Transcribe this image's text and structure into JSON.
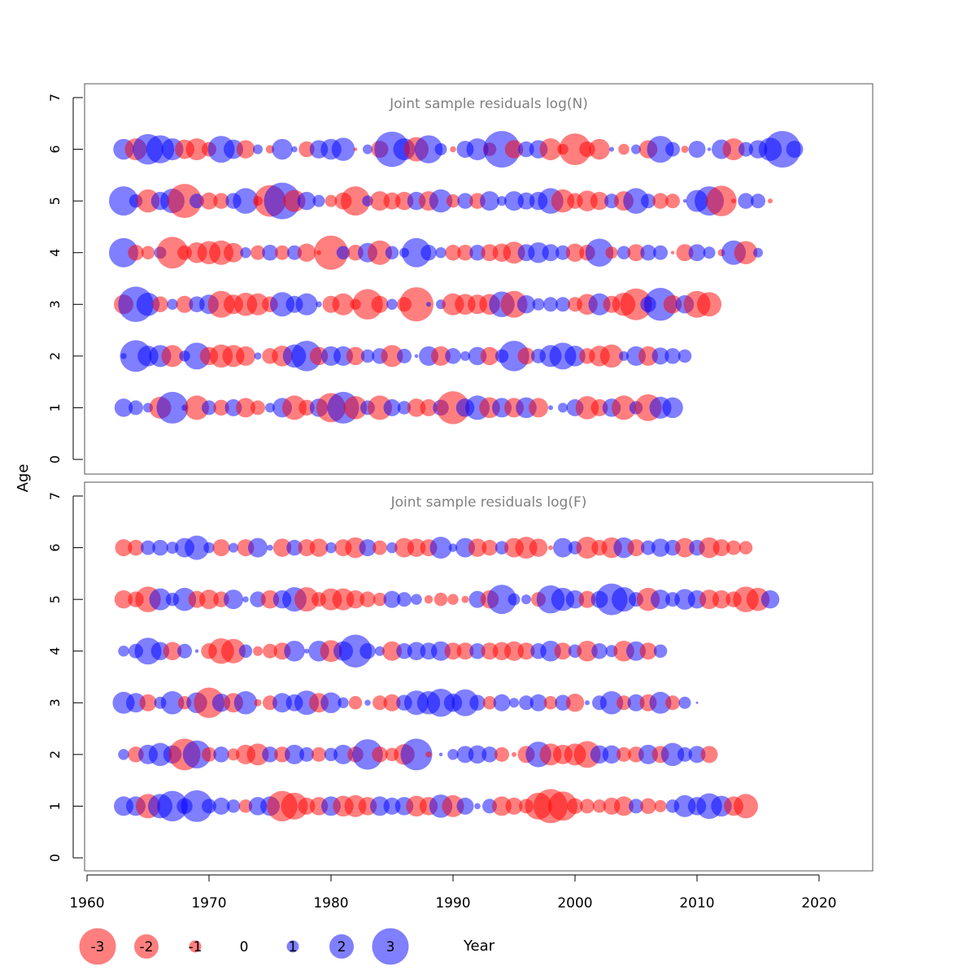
{
  "chart_data": [
    {
      "type": "bubble",
      "title": "Joint sample residuals log(N)",
      "ylim": [
        0,
        7
      ],
      "yticks": [
        0,
        1,
        2,
        3,
        4,
        5,
        6,
        7
      ],
      "ylabel": "Age",
      "grid": false,
      "years_start": 1963,
      "ages": [
        {
          "age": 6,
          "values": [
            1.7,
            -1.8,
            2.5,
            2.3,
            1.8,
            -1.6,
            -1.8,
            -1.2,
            2.2,
            1.6,
            -1.5,
            0.8,
            -0.7,
            1.7,
            0.5,
            -1.3,
            1.5,
            1.7,
            1.9,
            -0.3,
            0.8,
            -1.4,
            2.9,
            1.8,
            -2.0,
            2.3,
            1.0,
            -0.5,
            1.4,
            1.8,
            -1.1,
            3.0,
            -1.5,
            1.3,
            1.5,
            -1.8,
            -0.9,
            -2.6,
            -1.3,
            -1.7,
            0.4,
            -0.9,
            0.8,
            -1.5,
            2.2,
            1.2,
            -0.6,
            1.4,
            0.3,
            1.6,
            -1.8,
            1.2,
            1.5,
            1.9,
            3.0,
            1.4
          ]
        },
        {
          "age": 5,
          "values": [
            2.4,
            1.1,
            -1.9,
            1.5,
            2.0,
            -2.8,
            1.2,
            -1.4,
            -1.3,
            1.3,
            2.1,
            -0.8,
            -2.6,
            3.0,
            -1.8,
            1.5,
            1.0,
            -1.0,
            -1.4,
            -2.4,
            0.9,
            -1.6,
            -1.4,
            -1.5,
            1.5,
            -1.6,
            1.9,
            -1.1,
            1.3,
            -1.3,
            1.6,
            0.8,
            1.6,
            1.4,
            1.5,
            2.1,
            -1.9,
            -1.3,
            -1.7,
            -1.5,
            1.2,
            -1.6,
            2.1,
            1.2,
            -1.3,
            -1.2,
            0.3,
            1.8,
            2.4,
            -2.5,
            -0.4,
            1.3,
            1.2,
            -0.4
          ]
        },
        {
          "age": 4,
          "values": [
            2.4,
            -1.3,
            -1.1,
            1.0,
            -2.6,
            -1.2,
            -1.7,
            -1.9,
            -2.0,
            -1.6,
            0.9,
            -1.2,
            1.3,
            -1.2,
            1.2,
            -1.5,
            -0.4,
            -2.8,
            1.1,
            -1.3,
            1.6,
            -2.0,
            1.1,
            0.8,
            2.4,
            1.3,
            0.9,
            -1.3,
            -1.3,
            1.3,
            -1.4,
            -1.5,
            -1.8,
            1.4,
            1.7,
            1.4,
            1.2,
            -1.5,
            -1.3,
            2.3,
            -1.0,
            1.1,
            -1.4,
            1.3,
            1.2,
            -0.3,
            -1.4,
            1.4,
            1.0,
            -0.6,
            2.0,
            -1.9,
            0.8
          ]
        },
        {
          "age": 3,
          "values": [
            -1.6,
            2.9,
            1.9,
            -1.3,
            0.9,
            -1.4,
            1.3,
            1.6,
            -2.2,
            -1.6,
            -1.9,
            -1.8,
            -1.3,
            2.0,
            1.4,
            1.8,
            0.5,
            -1.4,
            -1.8,
            -0.9,
            -2.5,
            -1.4,
            0.9,
            -1.2,
            -2.8,
            0.4,
            0.8,
            -1.8,
            -1.7,
            -1.6,
            -1.7,
            2.1,
            -2.2,
            1.5,
            1.0,
            1.2,
            1.2,
            -1.2,
            -1.7,
            1.8,
            -1.4,
            -1.9,
            -2.6,
            1.3,
            2.7,
            -1.5,
            1.5,
            -2.2,
            -2.0
          ]
        },
        {
          "age": 2,
          "values": [
            0.5,
            2.6,
            1.7,
            1.8,
            -1.8,
            0.9,
            2.2,
            -1.5,
            -1.9,
            -1.8,
            -1.6,
            0.6,
            -1.3,
            -1.7,
            1.9,
            2.5,
            -1.5,
            1.6,
            1.6,
            -1.5,
            1.1,
            1.3,
            -1.8,
            1.2,
            0.3,
            1.6,
            -1.6,
            1.3,
            0.8,
            1.5,
            -1.5,
            1.1,
            2.5,
            -1.4,
            1.2,
            1.8,
            2.2,
            1.7,
            -1.3,
            -1.7,
            -1.9,
            0.8,
            1.6,
            -1.6,
            1.4,
            1.3,
            1.1
          ]
        },
        {
          "age": 1,
          "values": [
            1.5,
            1.2,
            0.8,
            -1.8,
            2.6,
            0.5,
            -2.0,
            1.2,
            -1.3,
            1.4,
            -1.6,
            -1.2,
            0.8,
            1.6,
            -2.0,
            -1.3,
            1.5,
            -2.4,
            2.6,
            -1.9,
            1.2,
            -2.0,
            1.4,
            1.1,
            -1.5,
            -1.4,
            1.3,
            -2.7,
            1.5,
            2.0,
            -1.7,
            1.6,
            -1.6,
            1.7,
            -1.6,
            0.4,
            0.8,
            1.4,
            -1.9,
            -1.4,
            1.5,
            -2.0,
            1.1,
            -2.2,
            1.8,
            1.7
          ]
        }
      ]
    },
    {
      "type": "bubble",
      "title": "Joint sample residuals log(F)",
      "ylim": [
        0,
        7
      ],
      "yticks": [
        0,
        1,
        2,
        3,
        4,
        5,
        6,
        7
      ],
      "grid": false,
      "years_start": 1963,
      "ages": [
        {
          "age": 6,
          "values": [
            -1.4,
            -1.3,
            1.2,
            1.3,
            1.0,
            1.6,
            2.0,
            0.9,
            -1.4,
            0.8,
            -1.4,
            1.6,
            0.5,
            -1.5,
            1.3,
            -1.4,
            -1.5,
            0.9,
            -1.4,
            -1.7,
            1.4,
            -1.2,
            0.9,
            -1.6,
            -1.5,
            -1.4,
            1.8,
            0.7,
            1.6,
            -1.5,
            -1.3,
            1.1,
            -1.6,
            -1.8,
            -1.5,
            -0.4,
            1.6,
            1.1,
            -1.8,
            -1.3,
            -1.7,
            1.7,
            -1.4,
            1.2,
            1.5,
            1.3,
            -1.6,
            1.3,
            -1.7,
            -1.4,
            -1.2,
            -1.1
          ]
        },
        {
          "age": 5,
          "values": [
            -1.5,
            -1.3,
            -2.1,
            1.8,
            1.1,
            1.9,
            -1.4,
            -1.6,
            -1.3,
            1.6,
            0.5,
            1.3,
            -1.5,
            1.5,
            2.0,
            -2.0,
            -1.2,
            -1.8,
            -1.8,
            -1.5,
            -1.3,
            -1.1,
            1.4,
            1.2,
            0.9,
            -0.7,
            -1.1,
            -0.9,
            -0.6,
            1.4,
            -1.5,
            2.4,
            1.0,
            0.8,
            -1.2,
            2.3,
            1.9,
            1.5,
            -1.4,
            1.4,
            2.6,
            2.0,
            1.2,
            -1.9,
            1.6,
            1.2,
            1.7,
            1.5,
            -1.6,
            -1.5,
            -1.3,
            -2.1,
            -1.9,
            1.5
          ]
        },
        {
          "age": 4,
          "values": [
            0.9,
            1.2,
            2.2,
            1.5,
            -1.5,
            1.2,
            0.3,
            -1.3,
            -2.1,
            -2.0,
            1.1,
            -0.8,
            -1.2,
            -1.4,
            1.7,
            0.4,
            1.7,
            -1.8,
            1.6,
            2.7,
            1.3,
            0.8,
            -1.6,
            1.3,
            1.5,
            1.4,
            1.6,
            -1.4,
            -1.4,
            1.3,
            -1.4,
            -1.5,
            -1.6,
            -1.4,
            1.3,
            1.7,
            -1.4,
            1.1,
            -1.7,
            1.3,
            1.0,
            -1.7,
            1.6,
            -1.4,
            1.1
          ]
        },
        {
          "age": 3,
          "values": [
            1.8,
            1.6,
            -1.4,
            1.0,
            1.9,
            -1.1,
            1.7,
            -2.5,
            1.5,
            -1.6,
            1.9,
            -0.6,
            -1.2,
            1.6,
            1.4,
            2.0,
            -1.6,
            1.7,
            0.9,
            -1.1,
            0.5,
            -1.2,
            -1.4,
            1.3,
            2.0,
            1.9,
            2.3,
            1.5,
            2.2,
            1.3,
            -1.1,
            1.4,
            0.8,
            1.2,
            1.4,
            -1.1,
            1.3,
            -1.5,
            0.4,
            1.2,
            1.9,
            -1.2,
            1.4,
            -1.4,
            1.8,
            -1.2,
            1.0,
            0.2
          ]
        },
        {
          "age": 2,
          "values": [
            0.9,
            -1.3,
            1.6,
            1.9,
            1.5,
            -2.6,
            2.3,
            -1.2,
            1.3,
            -1.0,
            -1.6,
            -1.8,
            1.3,
            -1.3,
            1.6,
            1.2,
            -1.2,
            1.1,
            1.6,
            -1.3,
            2.5,
            -1.3,
            -1.1,
            -1.7,
            2.6,
            -0.5,
            0.3,
            0.9,
            1.4,
            1.5,
            1.3,
            -1.2,
            -0.4,
            -1.4,
            2.1,
            -1.8,
            -1.6,
            -1.8,
            -2.2,
            1.5,
            1.5,
            -1.2,
            -1.3,
            1.6,
            -1.4,
            1.9,
            1.2,
            1.4,
            -1.4
          ]
        },
        {
          "age": 1,
          "values": [
            1.6,
            1.6,
            -2.0,
            2.0,
            2.5,
            1.3,
            2.6,
            1.2,
            1.4,
            1.1,
            -1.1,
            1.5,
            1.6,
            -2.5,
            -2.2,
            -1.4,
            -1.5,
            1.6,
            -1.7,
            -1.8,
            -1.5,
            1.6,
            1.4,
            1.5,
            -1.7,
            -1.5,
            1.9,
            -1.8,
            1.4,
            0.5,
            1.2,
            -1.6,
            -1.4,
            -1.2,
            -2.2,
            -2.8,
            -2.4,
            -1.3,
            -1.2,
            -1.1,
            -1.4,
            -1.6,
            1.2,
            -1.3,
            -1.0,
            1.1,
            1.8,
            1.5,
            2.1,
            1.7,
            -1.6,
            -2.0
          ]
        }
      ]
    }
  ],
  "x_axis": {
    "label": "Year",
    "ticks": [
      1960,
      1970,
      1980,
      1990,
      2000,
      2010,
      2020
    ],
    "xlim": [
      1960,
      2022
    ]
  },
  "y_axis": {
    "label": "Age"
  },
  "legend": {
    "placement": "bottom",
    "items": [
      {
        "label": "-3",
        "value": -3
      },
      {
        "label": "-2",
        "value": -2
      },
      {
        "label": "-1",
        "value": -1
      },
      {
        "label": "0",
        "value": 0
      },
      {
        "label": "1",
        "value": 1
      },
      {
        "label": "2",
        "value": 2
      },
      {
        "label": "3",
        "value": 3
      }
    ]
  },
  "colors": {
    "negative": "#ff0000",
    "positive": "#0000ff",
    "axis": "#000000",
    "title": "#808080"
  }
}
